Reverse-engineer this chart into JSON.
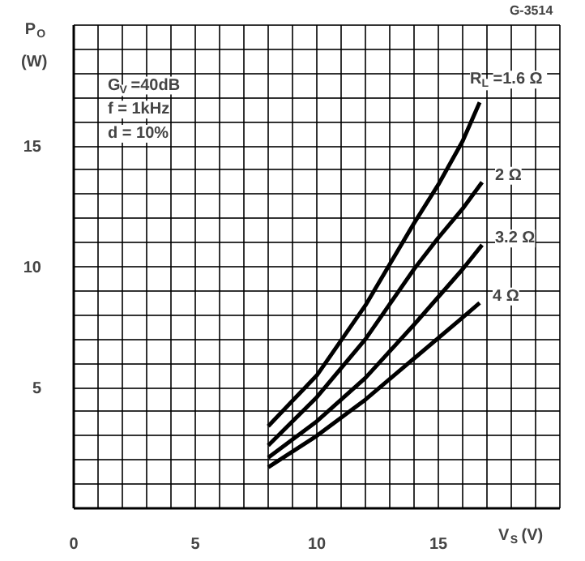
{
  "chart_data": {
    "type": "line",
    "xlabel": "V$_{S}$ (V)",
    "ylabel": "P$_{O}$ (W)",
    "xlim": [
      0,
      20
    ],
    "ylim": [
      0,
      20
    ],
    "xticks": [
      0,
      {
        "value": 1,
        "label": null
      },
      {
        "value": 2,
        "label": null
      },
      {
        "value": 3,
        "label": null
      },
      {
        "value": 4,
        "label": null
      },
      5,
      {
        "value": 6,
        "label": null
      },
      {
        "value": 7,
        "label": null
      },
      {
        "value": 8,
        "label": null
      },
      {
        "value": 9,
        "label": null
      },
      10,
      {
        "value": 11,
        "label": null
      },
      {
        "value": 12,
        "label": null
      },
      {
        "value": 13,
        "label": null
      },
      {
        "value": 14,
        "label": null
      },
      15,
      {
        "value": 16,
        "label": null
      },
      {
        "value": 17,
        "label": null
      },
      {
        "value": 18,
        "label": null
      },
      {
        "value": 19,
        "label": null
      },
      {
        "value": 20,
        "label": null
      }
    ],
    "yticks": [
      {
        "value": 0,
        "label": null
      },
      {
        "value": 1,
        "label": null
      },
      {
        "value": 2,
        "label": null
      },
      {
        "value": 3,
        "label": null
      },
      {
        "value": 4,
        "label": null
      },
      5,
      {
        "value": 6,
        "label": null
      },
      {
        "value": 7,
        "label": null
      },
      {
        "value": 8,
        "label": null
      },
      {
        "value": 9,
        "label": null
      },
      10,
      {
        "value": 11,
        "label": null
      },
      {
        "value": 12,
        "label": null
      },
      {
        "value": 13,
        "label": null
      },
      {
        "value": 14,
        "label": null
      },
      15,
      {
        "value": 16,
        "label": null
      },
      {
        "value": 17,
        "label": null
      },
      {
        "value": 18,
        "label": null
      },
      {
        "value": 19,
        "label": null
      },
      {
        "value": 20,
        "label": null
      }
    ],
    "grid": true,
    "legend": false,
    "marker": "none",
    "line_style": "solid",
    "annotations": [
      "G-3514",
      "G$_{V}$ =40dB",
      "f = 1kHz",
      "d = 10%"
    ],
    "series": [
      {
        "name": "R$_{L}$ =1.6 Ω",
        "color": "#000000",
        "x": [
          8,
          10,
          12,
          13,
          14,
          15,
          16,
          16.7
        ],
        "values": [
          3.4,
          5.5,
          8.4,
          10.1,
          11.8,
          13.4,
          15.2,
          16.8
        ]
      },
      {
        "name": "2 Ω",
        "color": "#000000",
        "x": [
          8,
          10,
          12,
          14,
          15,
          16,
          16.8
        ],
        "values": [
          2.6,
          4.6,
          7.0,
          9.9,
          11.2,
          12.4,
          13.5
        ]
      },
      {
        "name": "3.2 Ω",
        "color": "#000000",
        "x": [
          8,
          10,
          12,
          14,
          16,
          16.8
        ],
        "values": [
          2.1,
          3.6,
          5.4,
          7.6,
          9.9,
          10.9
        ]
      },
      {
        "name": "4 Ω",
        "color": "#000000",
        "x": [
          8,
          10,
          12,
          14,
          16,
          16.7
        ],
        "values": [
          1.7,
          3.0,
          4.5,
          6.2,
          7.9,
          8.5
        ]
      }
    ]
  }
}
